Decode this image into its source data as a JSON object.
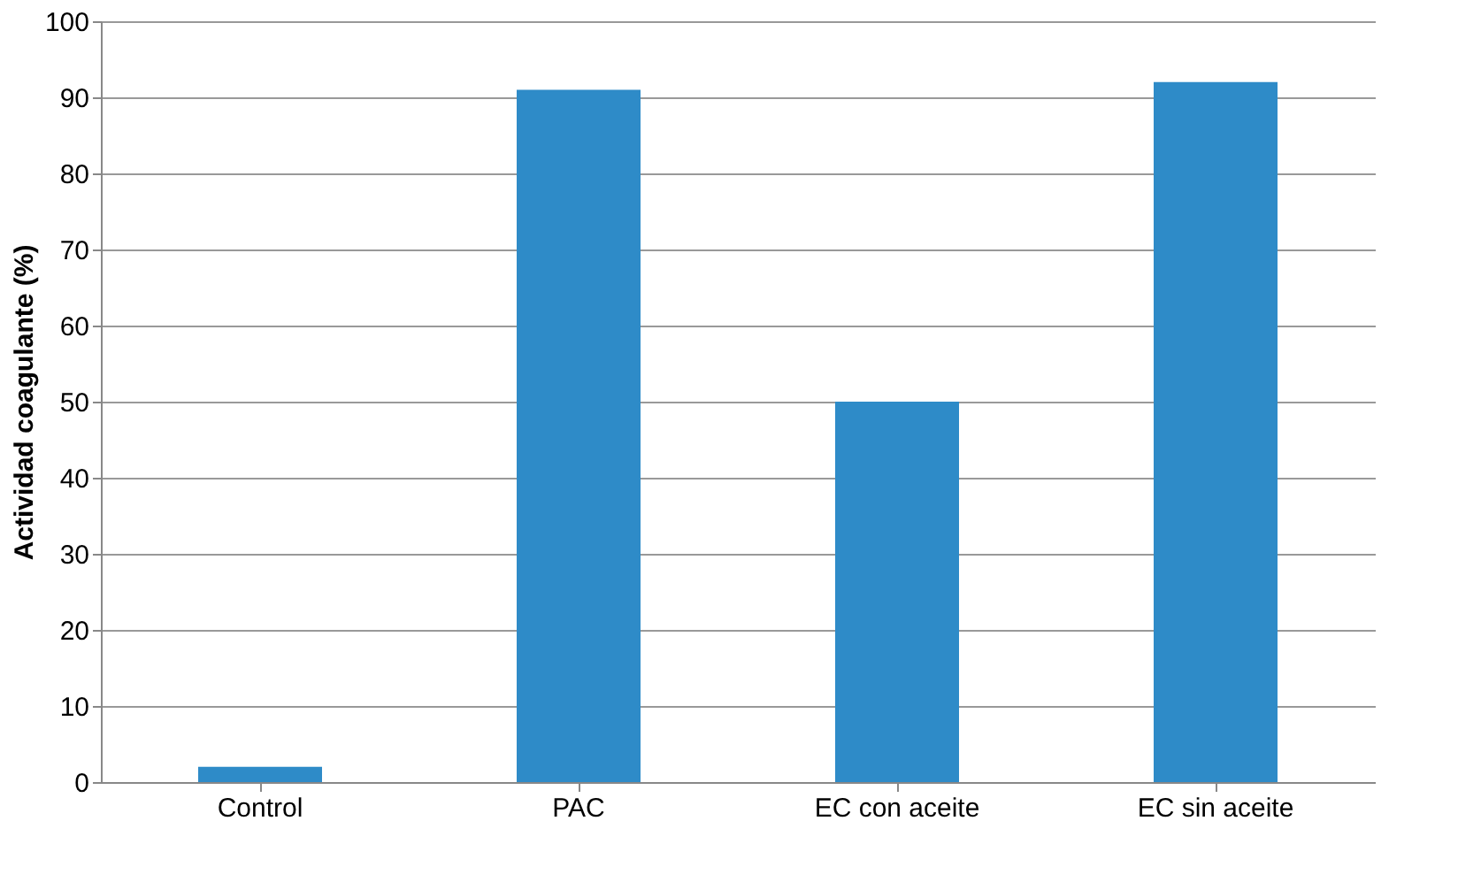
{
  "chart_data": {
    "type": "bar",
    "ylabel": "Actividad coagulante (%)",
    "categories": [
      "Control",
      "PAC",
      "EC con aceite",
      "EC sin aceite"
    ],
    "values": [
      2,
      91,
      50,
      92
    ],
    "color": "#2e8bc8",
    "ylim": [
      0,
      100
    ],
    "yticks": [
      0,
      10,
      20,
      30,
      40,
      50,
      60,
      70,
      80,
      90,
      100
    ],
    "grid": "y"
  }
}
